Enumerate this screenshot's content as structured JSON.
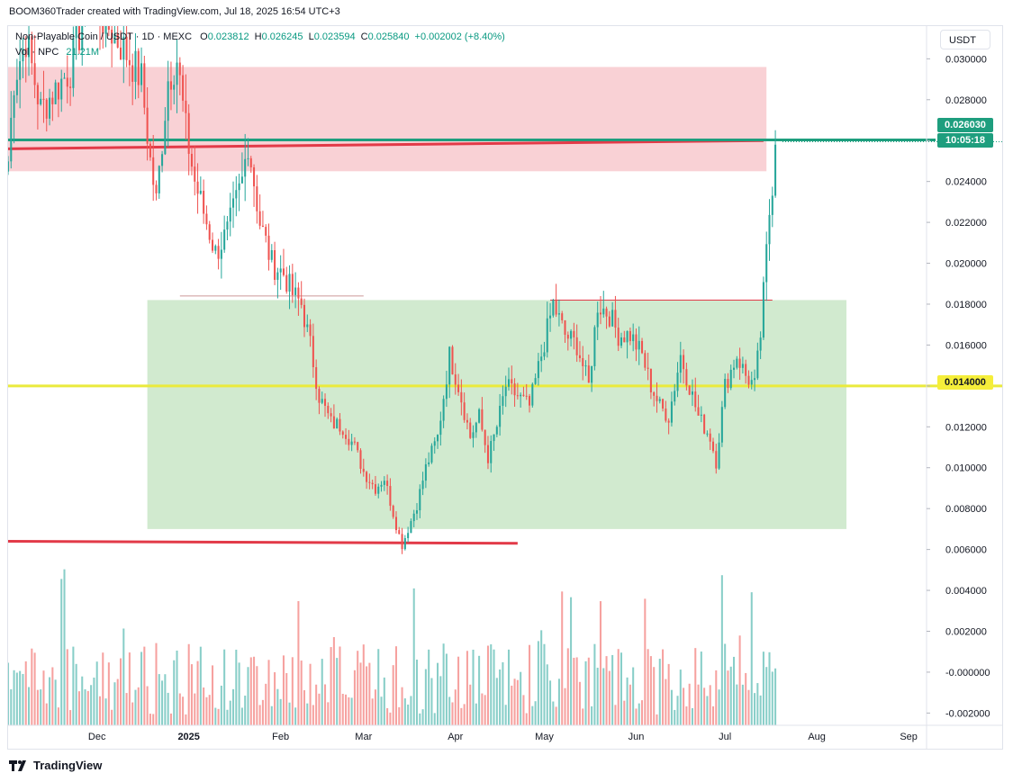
{
  "header": {
    "credit": "BOOM360Trader created with TradingView.com, Jul 18, 2025 16:54 UTC+3",
    "symbol": "Non-Playable Coin / USDT",
    "interval": "1D",
    "exchange": "MEXC",
    "o_label": "O",
    "o_value": "0.023812",
    "h_label": "H",
    "h_value": "0.026245",
    "l_label": "L",
    "l_value": "0.023594",
    "c_label": "C",
    "c_value": "0.025840",
    "change": "+0.002002 (+8.40%)",
    "vol_label": "Vol · NPC",
    "vol_value": "21.21M"
  },
  "currency_button": "USDT",
  "brand": "TradingView",
  "price_labels": {
    "current_price": "0.026030",
    "countdown": "10:05:18",
    "level": "0.014000"
  },
  "colors": {
    "up": "#26a69a",
    "down": "#ef5350",
    "resistance_zone": "#f8c9ce",
    "support_zone": "#c9e6c7",
    "current_line": "#1e9e7e",
    "red_line": "#e23a48",
    "level_line": "#eaea3c"
  },
  "chart_data": {
    "type": "candlestick",
    "y_axis": {
      "ticks": [
        "0.030000",
        "0.028000",
        "0.026000",
        "0.024000",
        "0.022000",
        "0.020000",
        "0.018000",
        "0.016000",
        "0.014000",
        "0.012000",
        "0.010000",
        "0.008000",
        "0.006000",
        "0.004000",
        "0.002000",
        "-0.000000",
        "-0.002000"
      ],
      "range": [
        -0.0026,
        0.0316
      ]
    },
    "x_axis": {
      "ticks": [
        "Dec",
        "2025",
        "Feb",
        "Mar",
        "Apr",
        "May",
        "Jun",
        "Jul",
        "Aug",
        "Sep"
      ],
      "tick_dates": [
        "2024-12-01",
        "2025-01-01",
        "2025-02-01",
        "2025-03-01",
        "2025-04-01",
        "2025-05-01",
        "2025-06-01",
        "2025-07-01",
        "2025-08-01",
        "2025-09-01"
      ],
      "range": [
        "2024-11-01",
        "2025-09-04"
      ]
    },
    "price_path": [
      [
        "2024-11-01",
        0.025
      ],
      [
        "2024-11-03",
        0.029
      ],
      [
        "2024-11-07",
        0.031
      ],
      [
        "2024-11-12",
        0.0275
      ],
      [
        "2024-11-22",
        0.0295
      ],
      [
        "2024-11-28",
        0.033
      ],
      [
        "2024-12-10",
        0.0305
      ],
      [
        "2024-12-16",
        0.029
      ],
      [
        "2024-12-19",
        0.025
      ],
      [
        "2024-12-21",
        0.023
      ],
      [
        "2024-12-25",
        0.029
      ],
      [
        "2024-12-28",
        0.03
      ],
      [
        "2024-12-31",
        0.0265
      ],
      [
        "2025-01-03",
        0.024
      ],
      [
        "2025-01-06",
        0.0225
      ],
      [
        "2025-01-10",
        0.0205
      ],
      [
        "2025-01-14",
        0.0215
      ],
      [
        "2025-01-19",
        0.024
      ],
      [
        "2025-01-21",
        0.026
      ],
      [
        "2025-01-25",
        0.022
      ],
      [
        "2025-01-29",
        0.02
      ],
      [
        "2025-02-02",
        0.0195
      ],
      [
        "2025-02-05",
        0.0185
      ],
      [
        "2025-02-08",
        0.018
      ],
      [
        "2025-02-11",
        0.016
      ],
      [
        "2025-02-14",
        0.0135
      ],
      [
        "2025-02-18",
        0.0122
      ],
      [
        "2025-02-22",
        0.012
      ],
      [
        "2025-02-26",
        0.011
      ],
      [
        "2025-03-01",
        0.0098
      ],
      [
        "2025-03-05",
        0.009
      ],
      [
        "2025-03-08",
        0.0095
      ],
      [
        "2025-03-12",
        0.0072
      ],
      [
        "2025-03-14",
        0.0062
      ],
      [
        "2025-03-16",
        0.007
      ],
      [
        "2025-03-19",
        0.0082
      ],
      [
        "2025-03-22",
        0.01
      ],
      [
        "2025-03-26",
        0.0115
      ],
      [
        "2025-03-30",
        0.0155
      ],
      [
        "2025-04-02",
        0.014
      ],
      [
        "2025-04-06",
        0.0115
      ],
      [
        "2025-04-09",
        0.0125
      ],
      [
        "2025-04-12",
        0.0105
      ],
      [
        "2025-04-15",
        0.012
      ],
      [
        "2025-04-18",
        0.014
      ],
      [
        "2025-04-22",
        0.0135
      ],
      [
        "2025-04-26",
        0.013
      ],
      [
        "2025-04-30",
        0.0155
      ],
      [
        "2025-05-04",
        0.018
      ],
      [
        "2025-05-08",
        0.0165
      ],
      [
        "2025-05-12",
        0.016
      ],
      [
        "2025-05-16",
        0.014
      ],
      [
        "2025-05-19",
        0.018
      ],
      [
        "2025-05-23",
        0.0175
      ],
      [
        "2025-05-26",
        0.0165
      ],
      [
        "2025-05-30",
        0.0165
      ],
      [
        "2025-06-03",
        0.0155
      ],
      [
        "2025-06-06",
        0.014
      ],
      [
        "2025-06-09",
        0.013
      ],
      [
        "2025-06-12",
        0.0125
      ],
      [
        "2025-06-16",
        0.0155
      ],
      [
        "2025-06-19",
        0.014
      ],
      [
        "2025-06-22",
        0.0125
      ],
      [
        "2025-06-26",
        0.0115
      ],
      [
        "2025-06-28",
        0.0103
      ],
      [
        "2025-07-01",
        0.014
      ],
      [
        "2025-07-05",
        0.0155
      ],
      [
        "2025-07-08",
        0.0145
      ],
      [
        "2025-07-11",
        0.014
      ],
      [
        "2025-07-13",
        0.0165
      ],
      [
        "2025-07-15",
        0.0205
      ],
      [
        "2025-07-16",
        0.0225
      ],
      [
        "2025-07-17",
        0.024
      ],
      [
        "2025-07-18",
        0.0258
      ]
    ],
    "volume_range": [
      0,
      0.0044
    ],
    "annotations": {
      "resistance_zone": {
        "from": "2024-11-01",
        "to": "2025-07-15",
        "low": 0.0245,
        "high": 0.0296
      },
      "support_zone": {
        "from": "2024-12-18",
        "to": "2025-08-11",
        "low": 0.007,
        "high": 0.0182
      },
      "red_line_top": {
        "from": [
          "2024-11-01",
          0.0256
        ],
        "to": [
          "2025-07-14",
          0.026
        ]
      },
      "red_line_bottom": {
        "from": [
          "2024-11-01",
          0.0064
        ],
        "to": [
          "2025-04-22",
          0.0063
        ]
      },
      "current_price_line": 0.02603,
      "level_line": 0.014,
      "neck_line": {
        "from": [
          "2025-05-03",
          0.0182
        ],
        "to": [
          "2025-07-17",
          0.0182
        ]
      },
      "gray_line": {
        "from": [
          "2024-12-29",
          0.0184
        ],
        "to": [
          "2025-03-01",
          0.0184
        ]
      }
    }
  }
}
